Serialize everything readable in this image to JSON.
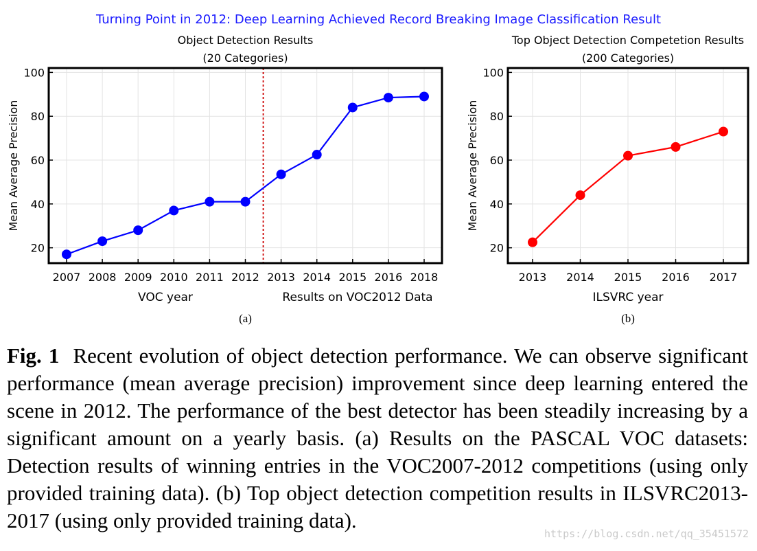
{
  "supertitle": "Turning Point in 2012: Deep Learning Achieved Record Breaking Image Classification Result",
  "chart_data": [
    {
      "type": "line",
      "panel_label": "(a)",
      "title": "Object Detection Results",
      "subtitle": "(20 Categories)",
      "ylabel": "Mean Average Precision",
      "xlabel": "VOC year",
      "xlabel_right": "Results on VOC2012 Data",
      "categories": [
        "2007",
        "2008",
        "2009",
        "2010",
        "2011",
        "2012",
        "2013",
        "2014",
        "2015",
        "2016",
        "2018"
      ],
      "values": [
        17,
        23,
        28,
        37,
        41,
        41,
        53.5,
        62.5,
        84,
        88.5,
        89
      ],
      "ylim": [
        13,
        102
      ],
      "yticks": [
        20,
        40,
        60,
        80,
        100
      ],
      "grid": true,
      "divider_after_index": 5,
      "line_color": "#0000ff",
      "divider_color": "#cc0000"
    },
    {
      "type": "line",
      "panel_label": "(b)",
      "title": "Top Object Detection Competetion Results",
      "subtitle": "(200 Categories)",
      "ylabel": "Mean Average Precision",
      "xlabel": "ILSVRC year",
      "categories": [
        "2013",
        "2014",
        "2015",
        "2016",
        "2017"
      ],
      "values": [
        22.5,
        44,
        62,
        66,
        73
      ],
      "ylim": [
        13,
        102
      ],
      "yticks": [
        20,
        40,
        60,
        80,
        100
      ],
      "grid": true,
      "line_color": "#ff0000"
    }
  ],
  "caption": {
    "label": "Fig. 1",
    "text": "Recent evolution of object detection performance. We can observe significant performance (mean average precision) improvement since deep learning entered the scene in 2012. The performance of the best detector has been steadily increasing by a significant amount on a yearly basis. (a) Results on the PASCAL VOC datasets: Detection results of winning entries in the VOC2007-2012 competitions (using only provided training data). (b) Top object detection competition results in ILSVRC2013-2017 (using only provided training data)."
  },
  "watermark": "https://blog.csdn.net/qq_35451572"
}
